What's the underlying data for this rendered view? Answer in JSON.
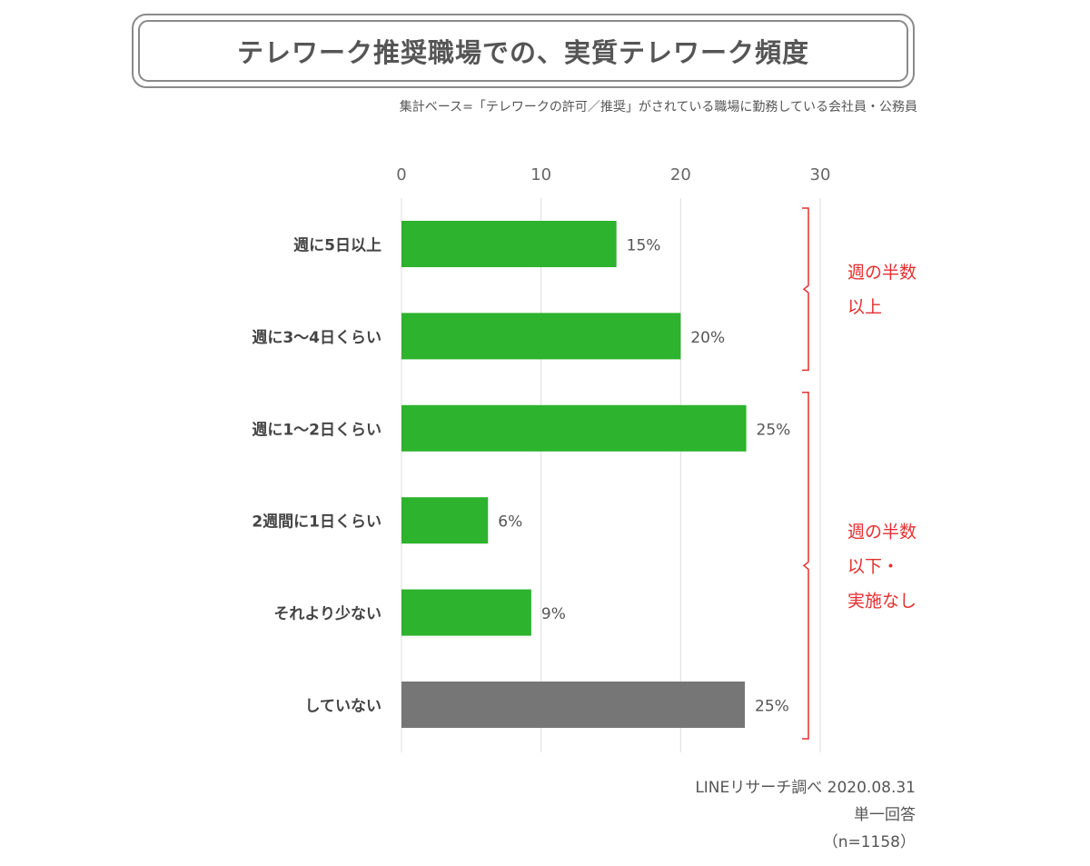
{
  "title": "テレワーク推奨職場での、実質テレワーク頻度",
  "subtitle": "集計ベース=「テレワークの許可／推奨」がされている職場に勤務している会社員・公務員",
  "chart_data": {
    "type": "bar",
    "orientation": "horizontal",
    "xlim": [
      0,
      30
    ],
    "x_ticks": [
      "0",
      "10",
      "20",
      "30"
    ],
    "categories": [
      "週に5日以上",
      "週に3〜4日くらい",
      "週に1〜2日くらい",
      "2週間に1日くらい",
      "それより少ない",
      "していない"
    ],
    "values": [
      15.4,
      20,
      24.7,
      6.2,
      9.3,
      24.6
    ],
    "value_labels": [
      "15%",
      "20%",
      "25%",
      "6%",
      "9%",
      "25%"
    ],
    "bar_colors": [
      "#2db32d",
      "#2db32d",
      "#2db32d",
      "#2db32d",
      "#2db32d",
      "#767676"
    ],
    "grid": true,
    "brackets": [
      {
        "lines": [
          "週の半数",
          "以上"
        ],
        "from_index": 0,
        "to_index": 1,
        "color": "#e62e2e"
      },
      {
        "lines": [
          "週の半数",
          "以下・",
          "実施なし"
        ],
        "from_index": 2,
        "to_index": 5,
        "color": "#e62e2e"
      }
    ]
  },
  "footer": {
    "source": "LINEリサーチ調べ 2020.08.31",
    "answer_type": "単一回答",
    "sample": "（n=1158）"
  }
}
